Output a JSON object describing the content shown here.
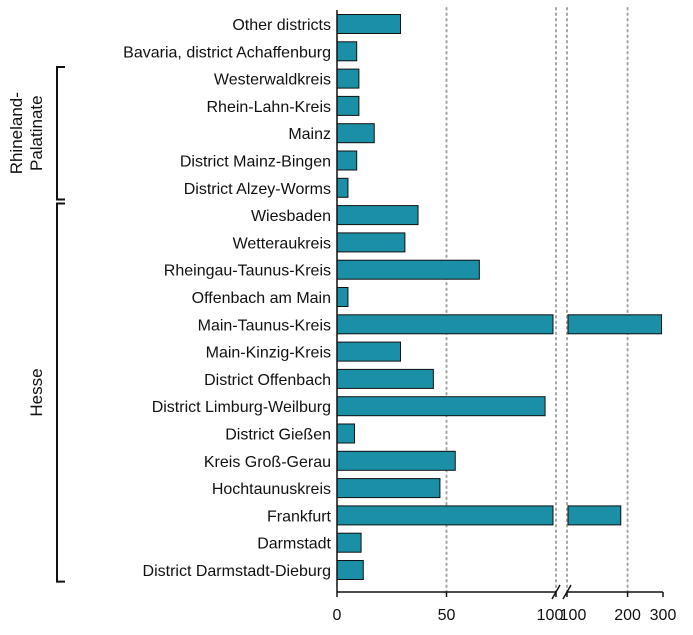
{
  "chart_data": {
    "type": "bar",
    "orientation": "horizontal",
    "bar_color": "#1a8fa6",
    "categories": [
      "Other districts",
      "Bavaria, district Achaffenburg",
      "Westerwaldkreis",
      "Rhein-Lahn-Kreis",
      "Mainz",
      "District Mainz-Bingen",
      "District Alzey-Worms",
      "Wiesbaden",
      "Wetteraukreis",
      "Rheingau-Taunus-Kreis",
      "Offenbach am Main",
      "Main-Taunus-Kreis",
      "Main-Kinzig-Kreis",
      "District Offenbach",
      "District Limburg-Weilburg",
      "District Gießen",
      "Kreis Groß-Gerau",
      "Hochtaunuskreis",
      "Frankfurt",
      "Darmstadt",
      "District Darmstadt-Dieburg"
    ],
    "values": [
      29,
      9,
      10,
      10,
      17,
      9,
      5,
      37,
      31,
      65,
      5,
      295,
      29,
      44,
      95,
      8,
      54,
      47,
      185,
      11,
      12
    ],
    "groups": [
      {
        "name": "Rhineland-Palatinate",
        "label_lines": [
          "Rhineland-",
          "Palatinate"
        ],
        "from": 2,
        "to": 6
      },
      {
        "name": "Hesse",
        "label_lines": [
          "Hesse"
        ],
        "from": 7,
        "to": 20
      }
    ],
    "x_axis": {
      "segments": [
        {
          "domain": [
            0,
            100
          ],
          "ticks": [
            0,
            50,
            100
          ]
        },
        {
          "domain": [
            100,
            300
          ],
          "scale": "log",
          "ticks": [
            100,
            200,
            300
          ]
        }
      ],
      "tick_labels": [
        "0",
        "50",
        "100",
        "100",
        "200",
        "300"
      ],
      "axis_break": true,
      "gridlines_at": [
        50,
        100,
        100,
        200
      ],
      "grid_style": "dotted"
    },
    "xlabel": "",
    "ylabel": ""
  }
}
